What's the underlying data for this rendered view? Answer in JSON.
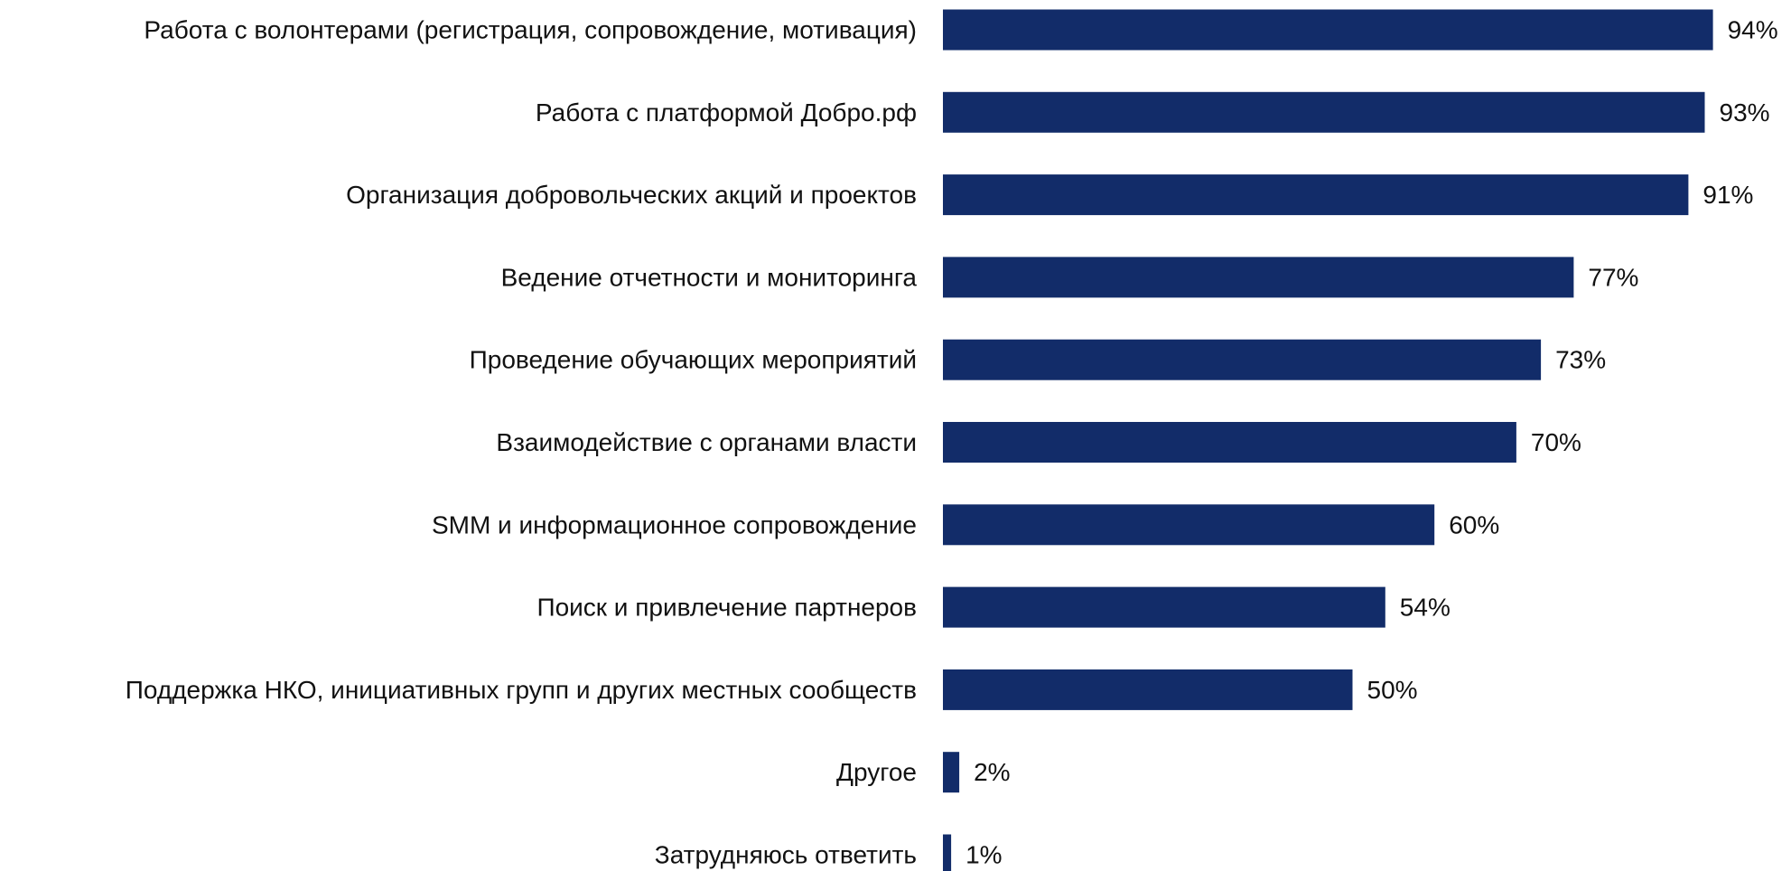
{
  "chart_data": {
    "type": "bar",
    "orientation": "horizontal",
    "title": "",
    "xlabel": "",
    "ylabel": "",
    "xlim": [
      0,
      100
    ],
    "grid": false,
    "legend": "none",
    "bar_color": "#122C69",
    "value_suffix": "%",
    "categories": [
      "Работа с волонтерами (регистрация, сопровождение, мотивация)",
      "Работа с платформой Добро.рф",
      "Организация добровольческих акций и проектов",
      "Ведение отчетности и мониторинга",
      "Проведение обучающих мероприятий",
      "Взаимодействие с органами власти",
      "SMM и информационное сопровождение",
      "Поиск и привлечение партнеров",
      "Поддержка НКО, инициативных групп и других местных сообществ",
      "Другое",
      "Затрудняюсь ответить"
    ],
    "values": [
      94,
      93,
      91,
      77,
      73,
      70,
      60,
      54,
      50,
      2,
      1
    ],
    "value_labels": [
      "94%",
      "93%",
      "91%",
      "77%",
      "73%",
      "70%",
      "60%",
      "54%",
      "50%",
      "2%",
      "1%"
    ]
  }
}
